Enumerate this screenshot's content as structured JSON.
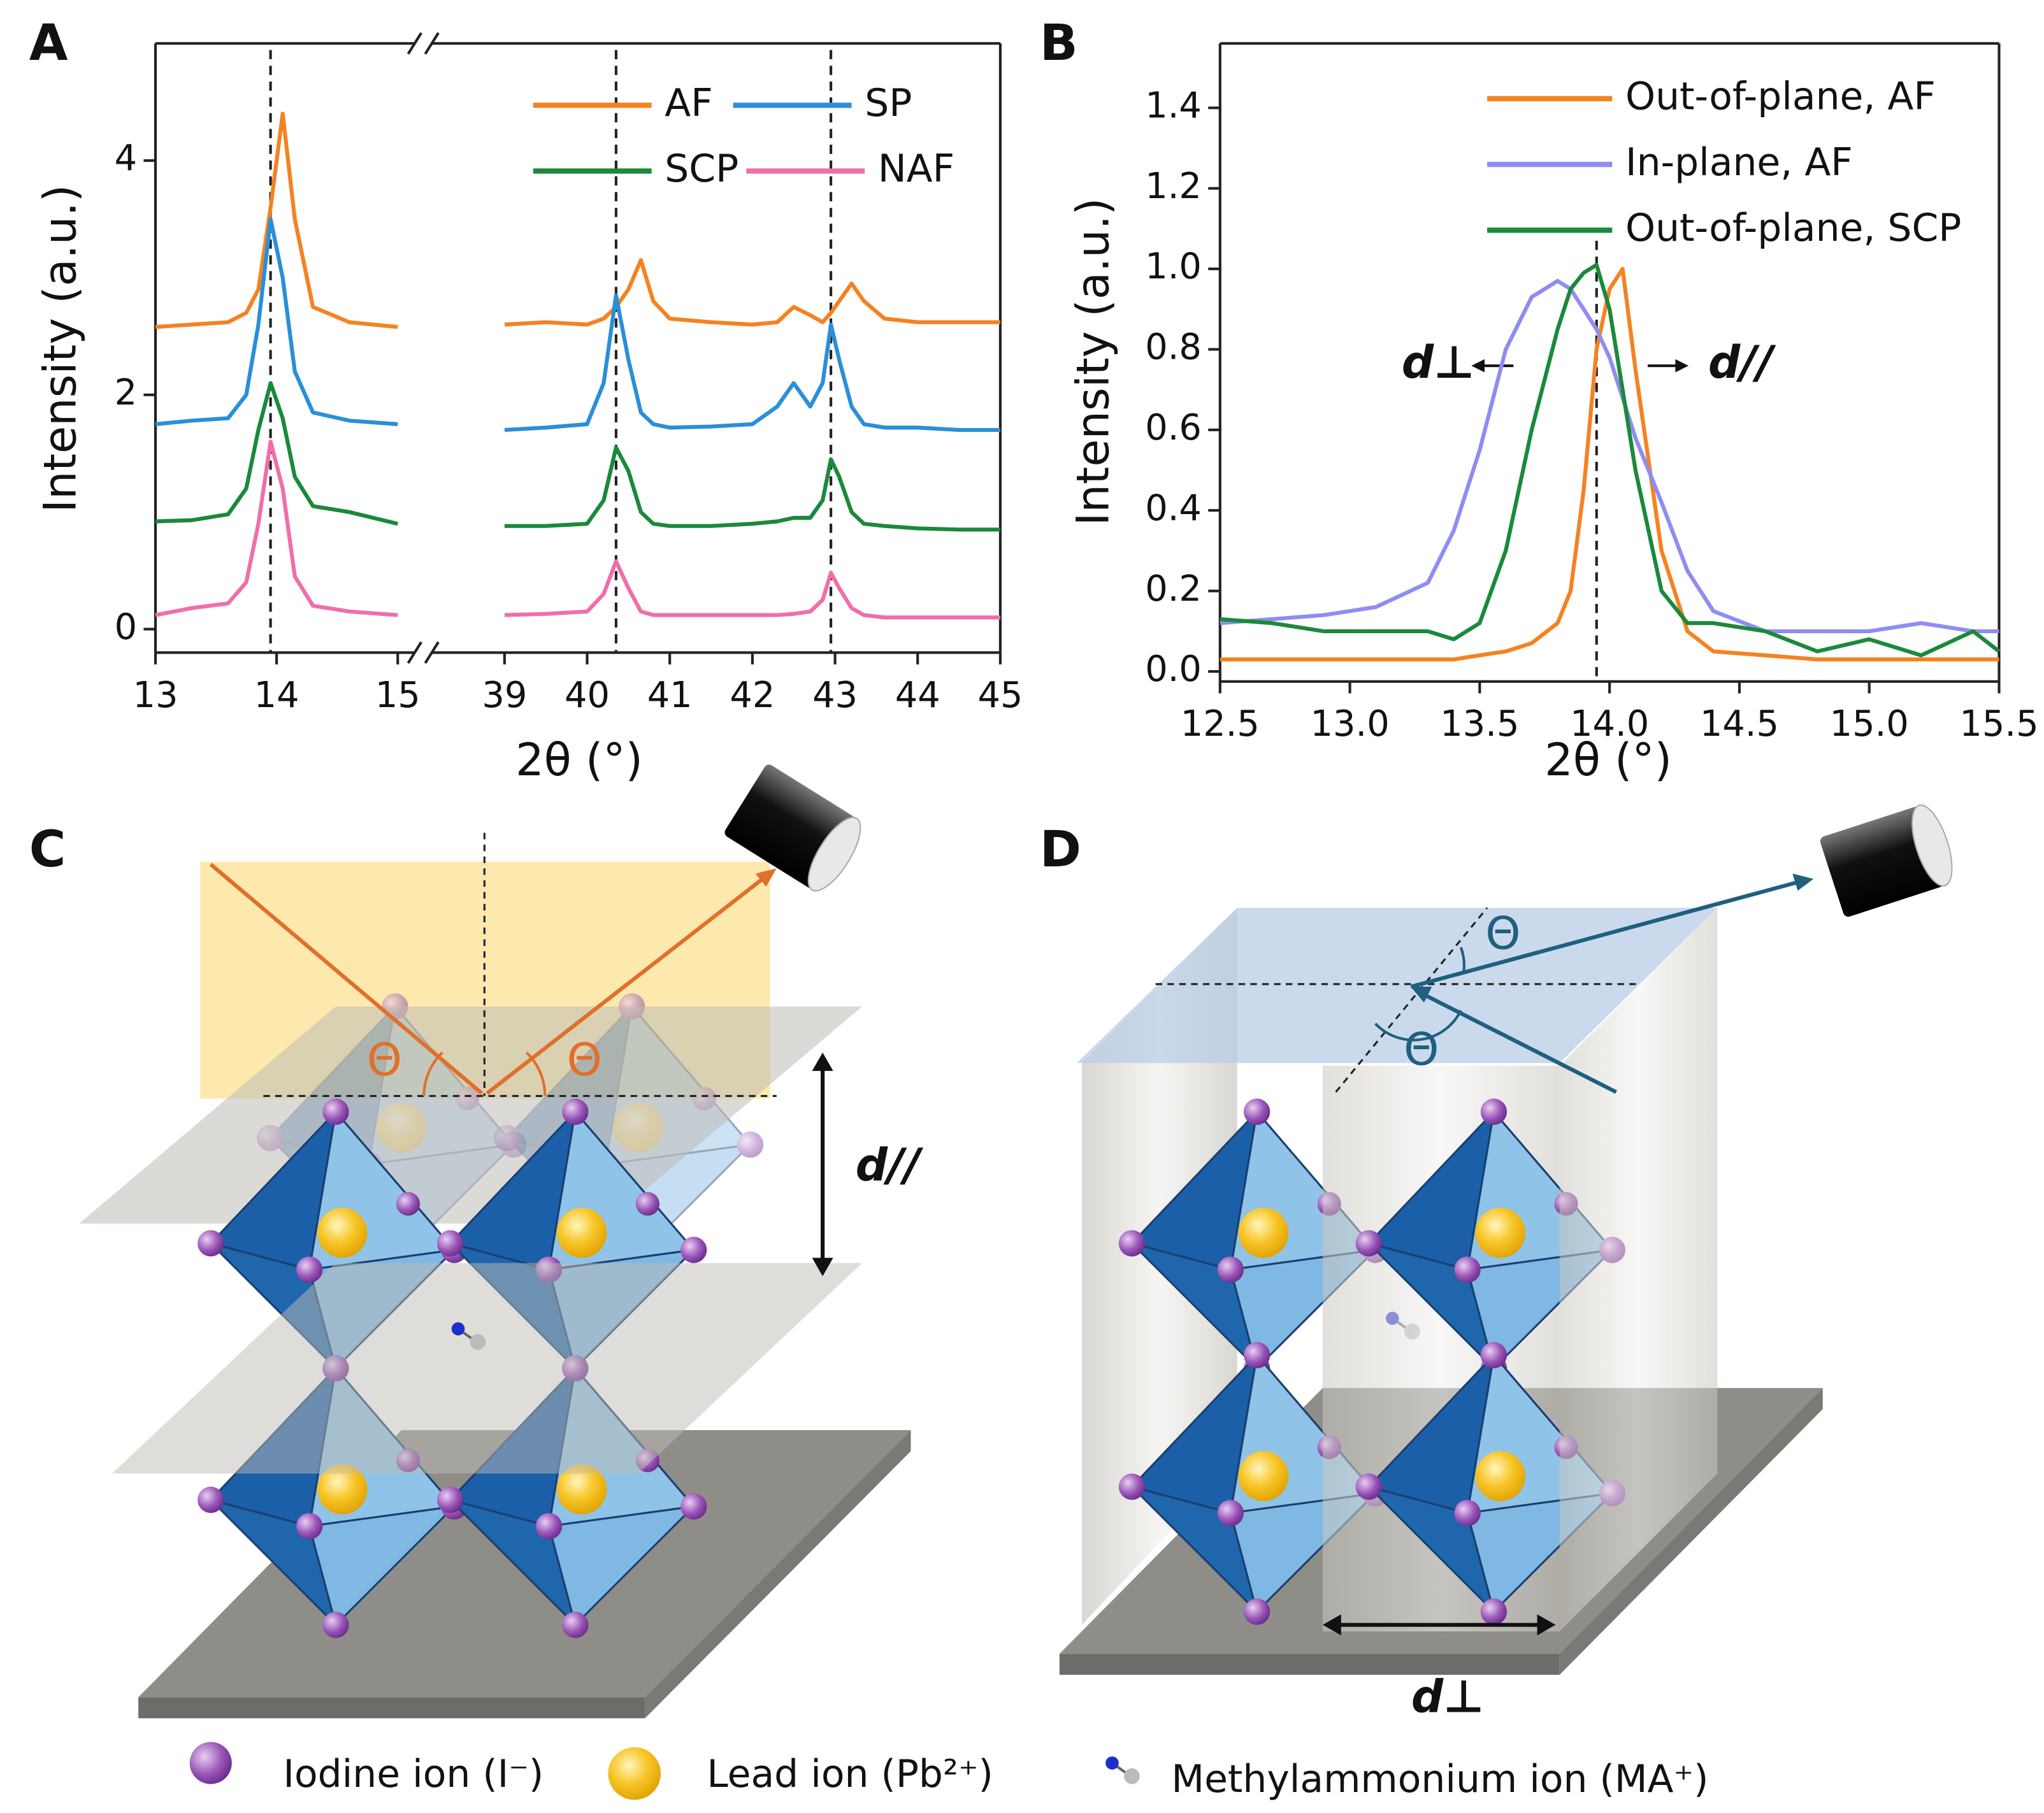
{
  "panels": [
    "A",
    "B",
    "C",
    "D"
  ],
  "chart_data": [
    {
      "type": "line",
      "ylabel": "Intensity (a.u.)",
      "xlabel": "2θ (°)",
      "xlim": [
        13,
        45
      ],
      "xbreak": [
        15.14,
        38.12
      ],
      "xticks": [
        13,
        14,
        15,
        39,
        40,
        41,
        42,
        43,
        44,
        45
      ],
      "ylim": [
        -0.2,
        5
      ],
      "yticks": [
        0,
        2,
        4
      ],
      "vlines": [
        13.95,
        40.35,
        42.95
      ],
      "x": [
        13,
        13.3,
        13.6,
        13.75,
        13.85,
        13.95,
        14.05,
        14.15,
        14.3,
        14.6,
        15,
        39,
        39.5,
        40,
        40.2,
        40.35,
        40.5,
        40.65,
        40.8,
        41,
        41.5,
        42,
        42.3,
        42.5,
        42.7,
        42.85,
        42.95,
        43.05,
        43.2,
        43.35,
        43.6,
        44,
        44.5,
        45
      ],
      "series": [
        {
          "name": "AF",
          "color": "#f58220",
          "values": [
            2.58,
            2.6,
            2.62,
            2.7,
            2.9,
            3.6,
            4.4,
            3.5,
            2.75,
            2.62,
            2.58,
            2.6,
            2.62,
            2.6,
            2.65,
            2.75,
            2.9,
            3.15,
            2.8,
            2.65,
            2.62,
            2.6,
            2.62,
            2.75,
            2.68,
            2.62,
            2.7,
            2.8,
            2.95,
            2.8,
            2.65,
            2.62,
            2.62,
            2.62
          ]
        },
        {
          "name": "SP",
          "color": "#2a8fd8",
          "values": [
            1.75,
            1.78,
            1.8,
            2.0,
            2.6,
            3.5,
            3.0,
            2.2,
            1.85,
            1.78,
            1.75,
            1.7,
            1.72,
            1.75,
            2.1,
            2.85,
            2.3,
            1.85,
            1.75,
            1.72,
            1.73,
            1.75,
            1.9,
            2.1,
            1.9,
            2.1,
            2.6,
            2.3,
            1.9,
            1.75,
            1.72,
            1.72,
            1.7,
            1.7
          ]
        },
        {
          "name": "SCP",
          "color": "#1a8a3a",
          "values": [
            0.92,
            0.93,
            0.98,
            1.2,
            1.7,
            2.1,
            1.8,
            1.3,
            1.05,
            1.0,
            0.9,
            0.88,
            0.88,
            0.9,
            1.1,
            1.55,
            1.35,
            1.0,
            0.9,
            0.88,
            0.88,
            0.9,
            0.92,
            0.95,
            0.95,
            1.1,
            1.45,
            1.3,
            1.0,
            0.9,
            0.88,
            0.86,
            0.85,
            0.85
          ]
        },
        {
          "name": "NAF",
          "color": "#f06ea9",
          "values": [
            0.12,
            0.18,
            0.22,
            0.4,
            0.9,
            1.6,
            1.2,
            0.45,
            0.2,
            0.15,
            0.12,
            0.12,
            0.13,
            0.15,
            0.3,
            0.58,
            0.35,
            0.15,
            0.12,
            0.12,
            0.12,
            0.12,
            0.12,
            0.13,
            0.15,
            0.25,
            0.48,
            0.35,
            0.18,
            0.12,
            0.1,
            0.1,
            0.1,
            0.1
          ]
        }
      ]
    },
    {
      "type": "line",
      "ylabel": "Intensity (a.u.)",
      "xlabel": "2θ (°)",
      "xlim": [
        12.5,
        15.5
      ],
      "xticks": [
        12.5,
        {
          "value": 13,
          "label": "13.0"
        },
        13.5,
        {
          "value": 14,
          "label": "14.0"
        },
        14.5,
        {
          "value": 15,
          "label": "15.0"
        },
        15.5
      ],
      "ylim": [
        -0.025,
        1.56
      ],
      "yticks": [
        {
          "value": 0,
          "label": "0.0"
        },
        0.2,
        0.4,
        0.6,
        0.8,
        {
          "value": 1,
          "label": "1.0"
        },
        1.2,
        1.4
      ],
      "vlines": [
        13.95
      ],
      "annotations": [
        "d⊥",
        "d//"
      ],
      "x": [
        12.5,
        12.7,
        12.9,
        13.1,
        13.3,
        13.4,
        13.5,
        13.6,
        13.7,
        13.8,
        13.85,
        13.9,
        13.95,
        14.0,
        14.05,
        14.1,
        14.2,
        14.3,
        14.4,
        14.6,
        14.8,
        15.0,
        15.2,
        15.4,
        15.5
      ],
      "series": [
        {
          "name": "Out-of-plane, AF",
          "color": "#f58220",
          "values": [
            0.03,
            0.03,
            0.03,
            0.03,
            0.03,
            0.03,
            0.04,
            0.05,
            0.07,
            0.12,
            0.2,
            0.45,
            0.8,
            0.95,
            1.0,
            0.75,
            0.3,
            0.1,
            0.05,
            0.04,
            0.03,
            0.03,
            0.03,
            0.03,
            0.03
          ]
        },
        {
          "name": "In-plane,  AF",
          "color": "#8f8cf2",
          "values": [
            0.12,
            0.13,
            0.14,
            0.16,
            0.22,
            0.35,
            0.55,
            0.8,
            0.93,
            0.97,
            0.95,
            0.9,
            0.85,
            0.78,
            0.68,
            0.58,
            0.42,
            0.25,
            0.15,
            0.1,
            0.1,
            0.1,
            0.12,
            0.1,
            0.1
          ]
        },
        {
          "name": "Out-of-plane, SCP",
          "color": "#1a8a3a",
          "values": [
            0.13,
            0.12,
            0.1,
            0.1,
            0.1,
            0.08,
            0.12,
            0.3,
            0.6,
            0.85,
            0.95,
            0.99,
            1.01,
            0.9,
            0.7,
            0.5,
            0.2,
            0.12,
            0.12,
            0.1,
            0.05,
            0.08,
            0.04,
            0.1,
            0.05
          ]
        }
      ]
    }
  ],
  "diagram": {
    "c": {
      "theta": [
        "Θ",
        "Θ"
      ],
      "spacing": "d//"
    },
    "d": {
      "theta": [
        "Θ",
        "Θ"
      ],
      "spacing": "d⊥"
    },
    "legend": [
      "Iodine ion (I⁻)",
      "Lead ion (Pb²⁺)",
      "Methylammonium ion (MA⁺)"
    ]
  }
}
